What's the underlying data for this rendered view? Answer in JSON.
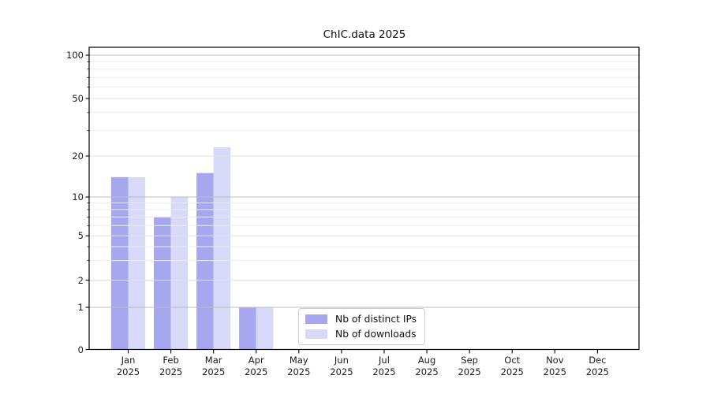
{
  "figure": {
    "title": "ChIC.data 2025",
    "background": "#ffffff"
  },
  "chart_data": {
    "type": "bar",
    "title": "ChIC.data 2025",
    "categories": [
      "Jan",
      "Feb",
      "Mar",
      "Apr",
      "May",
      "Jun",
      "Jul",
      "Aug",
      "Sep",
      "Oct",
      "Nov",
      "Dec"
    ],
    "category_year": "2025",
    "series": [
      {
        "name": "Nb of distinct IPs",
        "color": "#a7a7f0",
        "values": [
          14,
          7,
          15,
          1,
          0,
          0,
          0,
          0,
          0,
          0,
          0,
          0
        ]
      },
      {
        "name": "Nb of downloads",
        "color": "#d8d8f8",
        "values": [
          14,
          10,
          23,
          1,
          0,
          0,
          0,
          0,
          0,
          0,
          0,
          0
        ]
      }
    ],
    "xlabel": "",
    "ylabel": "",
    "y_axis": {
      "scale": "symlog-like",
      "tick_values": [
        0,
        1,
        2,
        5,
        10,
        20,
        50,
        100
      ],
      "minor_tick_values": [
        3,
        4,
        6,
        7,
        8,
        9,
        30,
        40,
        60,
        70,
        80,
        90
      ],
      "ylim": [
        0,
        110
      ]
    },
    "grid": true,
    "legend": {
      "position": "bottom-center-inside",
      "entries": [
        "Nb of distinct IPs",
        "Nb of downloads"
      ]
    },
    "colors": {
      "major_grid": "#bdbdbd",
      "minor_grid": "#ececec",
      "frame": "#000000"
    }
  },
  "legend": {
    "item1": "Nb of distinct IPs",
    "item2": "Nb of downloads"
  }
}
